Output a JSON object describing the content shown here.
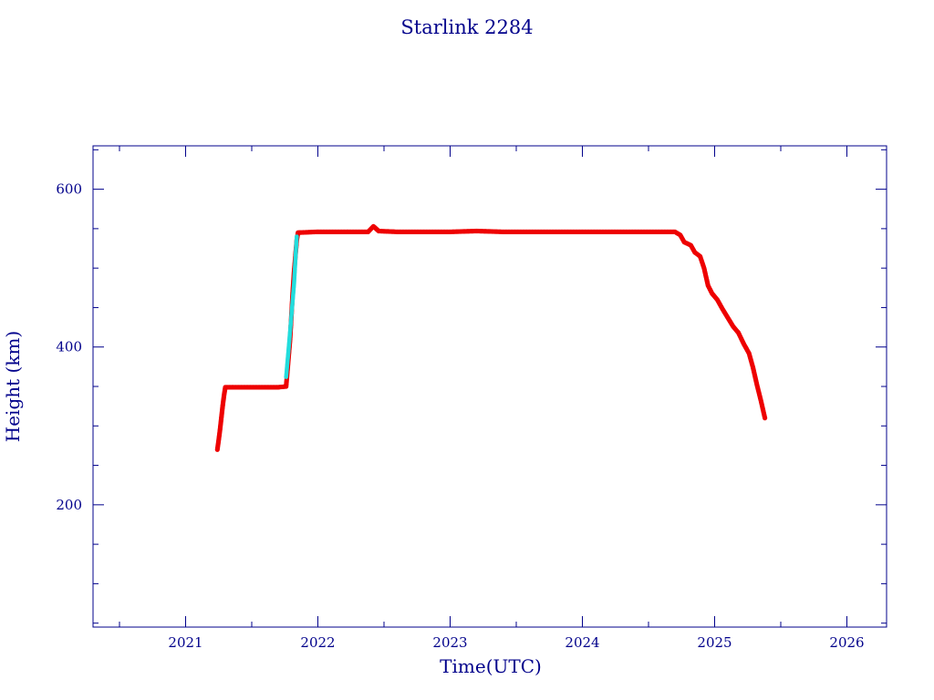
{
  "chart_data": {
    "type": "scatter",
    "title": "Starlink 2284",
    "xlabel": "Time(UTC)",
    "ylabel": "Height (km)",
    "xlim": [
      2020.3,
      2026.3
    ],
    "ylim": [
      45,
      655
    ],
    "x_ticks": [
      "2021",
      "2022",
      "2023",
      "2024",
      "2025",
      "2026"
    ],
    "y_ticks": [
      "200",
      "400",
      "600"
    ],
    "grid": false,
    "colors": {
      "axis": "#00008b",
      "primary": "#ee0000",
      "secondary": "#22dddd"
    },
    "series": [
      {
        "color": "#ee0000",
        "points": [
          [
            2021.24,
            270
          ],
          [
            2021.25,
            282
          ],
          [
            2021.26,
            295
          ],
          [
            2021.27,
            310
          ],
          [
            2021.28,
            325
          ],
          [
            2021.29,
            338
          ],
          [
            2021.3,
            349
          ],
          [
            2021.4,
            349
          ],
          [
            2021.5,
            349
          ],
          [
            2021.6,
            349
          ],
          [
            2021.7,
            349
          ],
          [
            2021.76,
            350
          ],
          [
            2021.77,
            370
          ],
          [
            2021.78,
            390
          ],
          [
            2021.79,
            410
          ],
          [
            2021.8,
            440
          ],
          [
            2021.81,
            470
          ],
          [
            2021.82,
            495
          ],
          [
            2021.83,
            515
          ],
          [
            2021.84,
            535
          ],
          [
            2021.85,
            545
          ],
          [
            2022.0,
            546
          ],
          [
            2022.2,
            546
          ],
          [
            2022.38,
            546
          ],
          [
            2022.42,
            553
          ],
          [
            2022.46,
            547
          ],
          [
            2022.6,
            546
          ],
          [
            2022.8,
            546
          ],
          [
            2023.0,
            546
          ],
          [
            2023.2,
            547
          ],
          [
            2023.4,
            546
          ],
          [
            2023.6,
            546
          ],
          [
            2023.8,
            546
          ],
          [
            2024.0,
            546
          ],
          [
            2024.2,
            546
          ],
          [
            2024.4,
            546
          ],
          [
            2024.6,
            546
          ],
          [
            2024.7,
            546
          ],
          [
            2024.74,
            542
          ],
          [
            2024.77,
            533
          ],
          [
            2024.82,
            529
          ],
          [
            2024.85,
            520
          ],
          [
            2024.89,
            515
          ],
          [
            2024.92,
            500
          ],
          [
            2024.95,
            478
          ],
          [
            2024.98,
            468
          ],
          [
            2025.02,
            460
          ],
          [
            2025.06,
            448
          ],
          [
            2025.1,
            437
          ],
          [
            2025.14,
            426
          ],
          [
            2025.18,
            418
          ],
          [
            2025.22,
            404
          ],
          [
            2025.26,
            392
          ],
          [
            2025.29,
            374
          ],
          [
            2025.32,
            352
          ],
          [
            2025.35,
            332
          ],
          [
            2025.38,
            310
          ]
        ]
      },
      {
        "color": "#22dddd",
        "points": [
          [
            2021.76,
            362
          ],
          [
            2021.78,
            400
          ],
          [
            2021.8,
            440
          ],
          [
            2021.82,
            480
          ],
          [
            2021.84,
            540
          ]
        ]
      }
    ]
  }
}
